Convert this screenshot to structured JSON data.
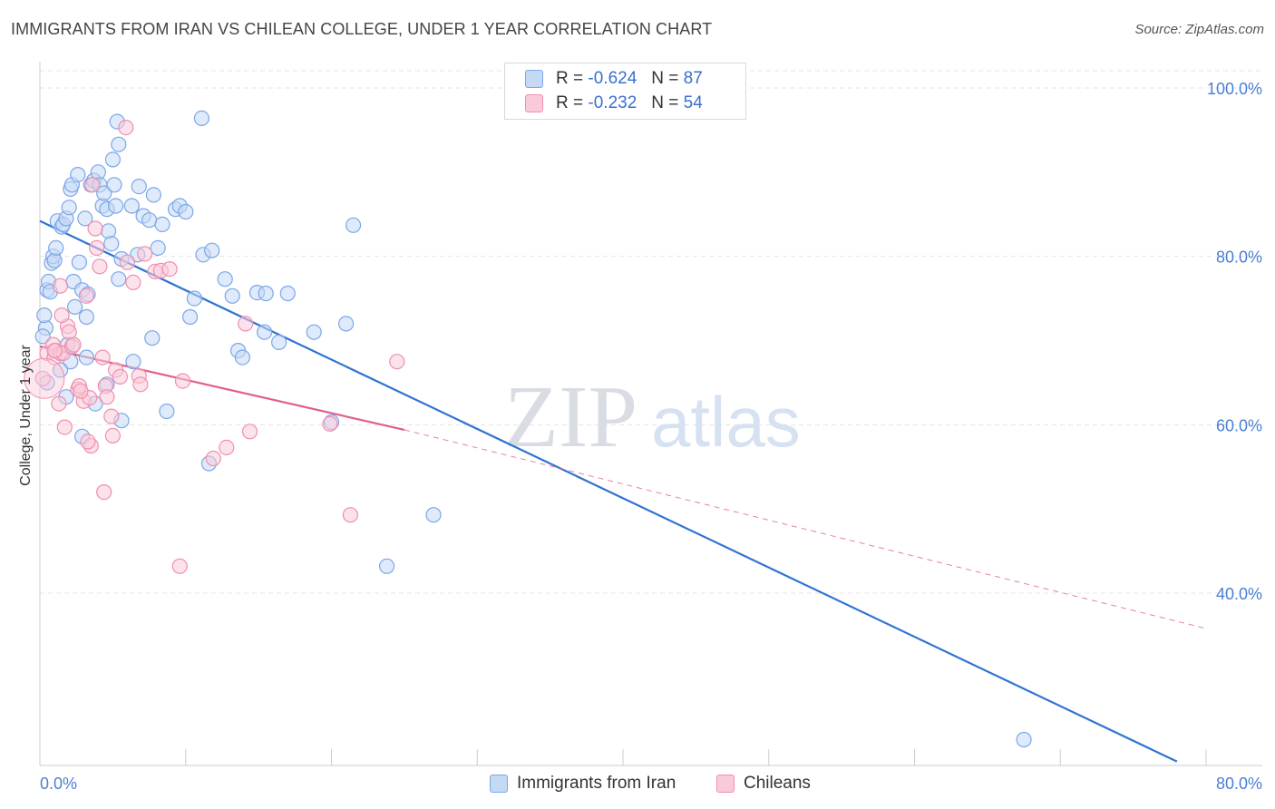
{
  "chart_data": {
    "type": "scatter",
    "title": "IMMIGRANTS FROM IRAN VS CHILEAN COLLEGE, UNDER 1 YEAR CORRELATION CHART",
    "source": "Source: ZipAtlas.com",
    "ylabel": "College, Under 1 year",
    "xlabel": "",
    "xlim": [
      0,
      80
    ],
    "ylim": [
      20,
      103
    ],
    "x_tick_labels": [
      "0.0%",
      "80.0%"
    ],
    "y_ticks": [
      {
        "value": 100,
        "label": "100.0%"
      },
      {
        "value": 80,
        "label": "80.0%"
      },
      {
        "value": 60,
        "label": "60.0%"
      },
      {
        "value": 40,
        "label": "40.0%"
      }
    ],
    "grid": true,
    "watermark": {
      "zip": "ZIP",
      "atlas": "atlas"
    },
    "legend": {
      "r_label": "R =",
      "n_label": "N =",
      "entries": [
        {
          "r": "-0.624",
          "n": "87"
        },
        {
          "r": "-0.232",
          "n": "54"
        }
      ]
    },
    "series": [
      {
        "name": "Immigrants from Iran",
        "color": "#7ba7e8",
        "fill": "#c5d9f5",
        "line_color": "#2f74d0",
        "trend": {
          "x0": 0,
          "y0": 84.2,
          "x1": 78,
          "y1": 20,
          "dashed_to": null
        },
        "points": [
          [
            0.5,
            65
          ],
          [
            0.4,
            71.5
          ],
          [
            0.3,
            73
          ],
          [
            0.5,
            76
          ],
          [
            0.6,
            77
          ],
          [
            0.7,
            75.8
          ],
          [
            0.8,
            79.2
          ],
          [
            0.9,
            80
          ],
          [
            1.0,
            79.5
          ],
          [
            1.1,
            81
          ],
          [
            1.2,
            84.2
          ],
          [
            1.5,
            83.5
          ],
          [
            1.6,
            83.8
          ],
          [
            1.8,
            84.5
          ],
          [
            2.0,
            85.8
          ],
          [
            2.1,
            88
          ],
          [
            2.2,
            88.5
          ],
          [
            2.6,
            89.7
          ],
          [
            2.3,
            77
          ],
          [
            2.4,
            74
          ],
          [
            2.7,
            79.3
          ],
          [
            2.9,
            76
          ],
          [
            3.1,
            84.5
          ],
          [
            3.2,
            72.8
          ],
          [
            3.3,
            75.5
          ],
          [
            3.5,
            88.5
          ],
          [
            3.7,
            89
          ],
          [
            4.0,
            90
          ],
          [
            4.1,
            88.5
          ],
          [
            4.3,
            86
          ],
          [
            4.4,
            87.5
          ],
          [
            4.6,
            85.6
          ],
          [
            4.7,
            83
          ],
          [
            4.9,
            81.5
          ],
          [
            5.0,
            91.5
          ],
          [
            5.1,
            88.5
          ],
          [
            5.2,
            86
          ],
          [
            5.4,
            77.3
          ],
          [
            5.6,
            79.7
          ],
          [
            5.3,
            96
          ],
          [
            5.4,
            93.3
          ],
          [
            6.3,
            86
          ],
          [
            6.7,
            80.2
          ],
          [
            6.8,
            88.3
          ],
          [
            7.1,
            84.8
          ],
          [
            7.5,
            84.3
          ],
          [
            7.8,
            87.3
          ],
          [
            8.1,
            81
          ],
          [
            8.4,
            83.8
          ],
          [
            9.3,
            85.6
          ],
          [
            9.6,
            86
          ],
          [
            10.0,
            85.3
          ],
          [
            11.2,
            80.2
          ],
          [
            11.8,
            80.7
          ],
          [
            12.7,
            77.3
          ],
          [
            13.2,
            75.3
          ],
          [
            14.9,
            75.7
          ],
          [
            15.5,
            75.6
          ],
          [
            17.0,
            75.6
          ],
          [
            10.3,
            72.8
          ],
          [
            10.6,
            75
          ],
          [
            7.7,
            70.3
          ],
          [
            13.6,
            68.8
          ],
          [
            13.9,
            68
          ],
          [
            15.4,
            71
          ],
          [
            16.4,
            69.8
          ],
          [
            18.8,
            71
          ],
          [
            21.0,
            72
          ],
          [
            21.5,
            83.7
          ],
          [
            11.1,
            96.4
          ],
          [
            3.8,
            62.5
          ],
          [
            1.8,
            63.3
          ],
          [
            8.7,
            61.6
          ],
          [
            11.6,
            55.4
          ],
          [
            5.6,
            60.5
          ],
          [
            2.9,
            58.6
          ],
          [
            20.0,
            60.3
          ],
          [
            27.0,
            49.3
          ],
          [
            23.8,
            43.2
          ],
          [
            67.5,
            22.6
          ],
          [
            2.1,
            67.5
          ],
          [
            3.2,
            68
          ],
          [
            6.4,
            67.5
          ],
          [
            0.2,
            70.5
          ],
          [
            1.9,
            69.5
          ],
          [
            4.6,
            64.8
          ],
          [
            1.4,
            66.5
          ]
        ]
      },
      {
        "name": "Chileans",
        "color": "#ef8fb0",
        "fill": "#f9cad9",
        "line_color": "#e0608a",
        "trend": {
          "x0": 0,
          "y0": 69.3,
          "x1": 25,
          "y1": 59.4,
          "dashed_to": {
            "x": 80,
            "y": 35.8
          }
        },
        "points": [
          [
            0.2,
            65.5
          ],
          [
            0.5,
            68.5
          ],
          [
            0.9,
            69.5
          ],
          [
            1.0,
            68
          ],
          [
            1.1,
            68.8
          ],
          [
            1.4,
            68.5
          ],
          [
            1.6,
            68.5
          ],
          [
            1.9,
            71.7
          ],
          [
            2.0,
            71
          ],
          [
            2.2,
            69.3
          ],
          [
            2.3,
            69.5
          ],
          [
            1.5,
            73
          ],
          [
            1.4,
            76.5
          ],
          [
            2.6,
            64.2
          ],
          [
            2.7,
            64.6
          ],
          [
            3.0,
            62.8
          ],
          [
            3.4,
            63.2
          ],
          [
            3.5,
            57.5
          ],
          [
            3.3,
            58
          ],
          [
            3.2,
            75.3
          ],
          [
            3.6,
            88.5
          ],
          [
            3.8,
            83.3
          ],
          [
            3.9,
            81
          ],
          [
            4.1,
            78.8
          ],
          [
            4.3,
            68
          ],
          [
            4.5,
            64.6
          ],
          [
            4.6,
            63.3
          ],
          [
            4.9,
            61
          ],
          [
            5.0,
            58.7
          ],
          [
            5.2,
            66.5
          ],
          [
            5.5,
            65.7
          ],
          [
            5.9,
            95.3
          ],
          [
            6.0,
            79.3
          ],
          [
            6.4,
            76.9
          ],
          [
            6.8,
            65.8
          ],
          [
            6.9,
            64.8
          ],
          [
            7.2,
            80.3
          ],
          [
            7.9,
            78.2
          ],
          [
            8.3,
            78.3
          ],
          [
            8.9,
            78.5
          ],
          [
            9.8,
            65.2
          ],
          [
            11.9,
            56
          ],
          [
            12.8,
            57.3
          ],
          [
            14.1,
            72
          ],
          [
            14.4,
            59.2
          ],
          [
            19.9,
            60.1
          ],
          [
            21.3,
            49.3
          ],
          [
            24.5,
            67.5
          ],
          [
            4.4,
            52
          ],
          [
            9.6,
            43.2
          ],
          [
            1.3,
            62.5
          ],
          [
            1.0,
            68.8
          ],
          [
            2.8,
            64
          ],
          [
            1.7,
            59.7
          ]
        ]
      }
    ]
  }
}
